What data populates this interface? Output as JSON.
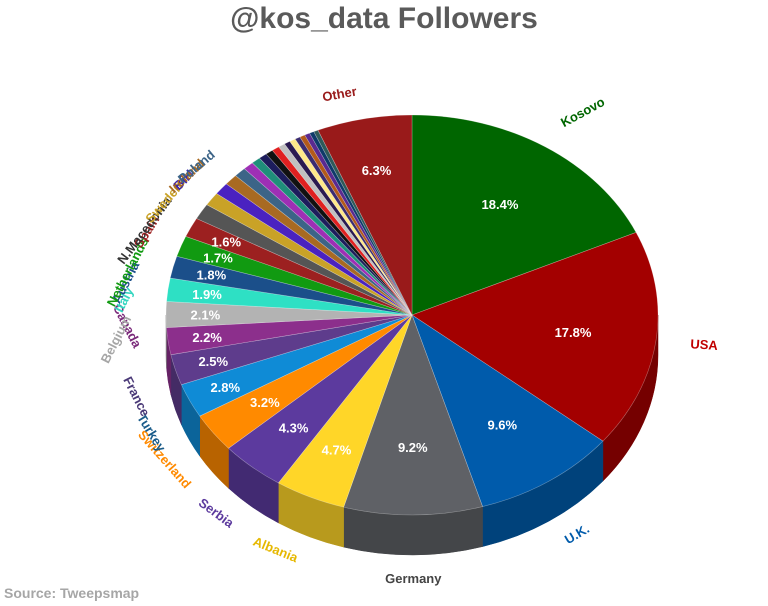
{
  "chart_data": {
    "type": "pie",
    "title": "@kos_data Followers",
    "source": "Source: Tweepsmap",
    "slices": [
      {
        "label": "Kosovo",
        "value": 18.4,
        "value_label": "18.4%",
        "color": "#006600",
        "label_color": "#006600"
      },
      {
        "label": "USA",
        "value": 17.8,
        "value_label": "17.8%",
        "color": "#a30000",
        "label_color": "#c00000"
      },
      {
        "label": "U.K.",
        "value": 9.6,
        "value_label": "9.6%",
        "color": "#005bab",
        "label_color": "#005bab"
      },
      {
        "label": "Germany",
        "value": 9.2,
        "value_label": "9.2%",
        "color": "#5f6166",
        "label_color": "#444444"
      },
      {
        "label": "Albania",
        "value": 4.7,
        "value_label": "4.7%",
        "color": "#ffd628",
        "label_color": "#e6b800"
      },
      {
        "label": "Serbia",
        "value": 4.3,
        "value_label": "4.3%",
        "color": "#5c3a9e",
        "label_color": "#5c3a9e"
      },
      {
        "label": "Switzerland",
        "value": 3.2,
        "value_label": "3.2%",
        "color": "#ff8a00",
        "label_color": "#ff8a00"
      },
      {
        "label": "Turkey",
        "value": 2.8,
        "value_label": "2.8%",
        "color": "#0f8bd6",
        "label_color": "#1a5c8a"
      },
      {
        "label": "France",
        "value": 2.5,
        "value_label": "2.5%",
        "color": "#5e3c8c",
        "label_color": "#4b3a78"
      },
      {
        "label": "Canada",
        "value": 2.2,
        "value_label": "2.2%",
        "color": "#8c2f8c",
        "label_color": "#7a2a7a"
      },
      {
        "label": "Belgium",
        "value": 2.1,
        "value_label": "2.1%",
        "color": "#b3b3b3",
        "label_color": "#a6a6a6"
      },
      {
        "label": "Italy",
        "value": 1.9,
        "value_label": "1.9%",
        "color": "#2ee0c4",
        "label_color": "#33d6c0"
      },
      {
        "label": "Austria",
        "value": 1.8,
        "value_label": "1.8%",
        "color": "#1b4f8a",
        "label_color": "#1b4f8a"
      },
      {
        "label": "Netherlands",
        "value": 1.7,
        "value_label": "1.7%",
        "color": "#119a11",
        "label_color": "#119a11"
      },
      {
        "label": "Spain",
        "value": 1.6,
        "value_label": "1.6%",
        "color": "#9c2020",
        "label_color": "#9c2020"
      },
      {
        "label": "N.Macedonia",
        "value": 1.3,
        "value_label": "",
        "color": "#555555",
        "label_color": "#333333"
      },
      {
        "label": "Sweden",
        "value": 1.1,
        "value_label": "",
        "color": "#c9a227",
        "label_color": "#c9a227"
      },
      {
        "label": "BiH",
        "value": 1.0,
        "value_label": "",
        "color": "#4a22c0",
        "label_color": "#3a22b0"
      },
      {
        "label": "Ireland",
        "value": 0.9,
        "value_label": "",
        "color": "#a86a22",
        "label_color": "#a86a22"
      },
      {
        "label": "Poland",
        "value": 0.8,
        "value_label": "",
        "color": "#3c6487",
        "label_color": "#3c6487"
      },
      {
        "label": "",
        "value": 0.7,
        "value_label": "",
        "color": "#9e2fb5",
        "label_color": "#9e2fb5"
      },
      {
        "label": "",
        "value": 0.6,
        "value_label": "",
        "color": "#1f8f7a",
        "label_color": "#1f8f7a"
      },
      {
        "label": "",
        "value": 0.55,
        "value_label": "",
        "color": "#1d1d5c",
        "label_color": "#1d1d5c"
      },
      {
        "label": "",
        "value": 0.5,
        "value_label": "",
        "color": "#111111",
        "label_color": "#111111"
      },
      {
        "label": "",
        "value": 0.5,
        "value_label": "",
        "color": "#e02020",
        "label_color": "#e02020"
      },
      {
        "label": "",
        "value": 0.45,
        "value_label": "",
        "color": "#c0c0c0",
        "label_color": "#c0c0c0"
      },
      {
        "label": "",
        "value": 0.4,
        "value_label": "",
        "color": "#2a1a50",
        "label_color": "#2a1a50"
      },
      {
        "label": "",
        "value": 0.4,
        "value_label": "",
        "color": "#ffe98a",
        "label_color": "#ffe98a"
      },
      {
        "label": "",
        "value": 0.35,
        "value_label": "",
        "color": "#3b2c70",
        "label_color": "#3b2c70"
      },
      {
        "label": "",
        "value": 0.35,
        "value_label": "",
        "color": "#b35a1a",
        "label_color": "#b35a1a"
      },
      {
        "label": "",
        "value": 0.35,
        "value_label": "",
        "color": "#5a2a90",
        "label_color": "#5a2a90"
      },
      {
        "label": "",
        "value": 0.3,
        "value_label": "",
        "color": "#0e3a6a",
        "label_color": "#0e3a6a"
      },
      {
        "label": "",
        "value": 0.3,
        "value_label": "",
        "color": "#2e5a5a",
        "label_color": "#2e5a5a"
      },
      {
        "label": "Other",
        "value": 6.3,
        "value_label": "6.3%",
        "color": "#991a1a",
        "label_color": "#991a1a"
      }
    ]
  }
}
